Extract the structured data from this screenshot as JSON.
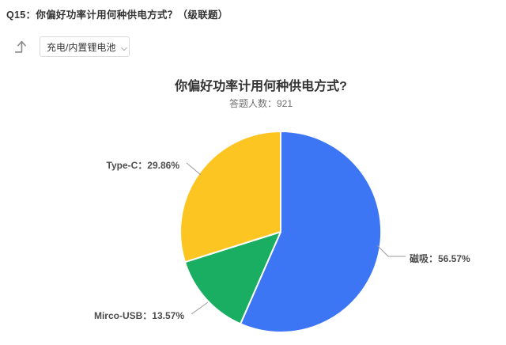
{
  "header": {
    "question_label": "Q15：你偏好功率计用何种供电方式？（级联题）"
  },
  "cascade": {
    "arrow_icon": "level-up-arrow",
    "dropdown_value": "充电/内置锂电池",
    "chevron_icon": "chevron-down"
  },
  "chart": {
    "title": "你偏好功率计用何种供电方式?",
    "respondents_label": "答题人数：921"
  },
  "chart_data": {
    "type": "pie",
    "title": "你偏好功率计用何种供电方式?",
    "respondents": 921,
    "start_angle_deg": -90,
    "direction": "clockwise",
    "slices": [
      {
        "label": "磁吸",
        "percent": 56.57,
        "color": "#3D76F5",
        "display": "磁吸：56.57%"
      },
      {
        "label": "Mirco-USB",
        "percent": 13.57,
        "color": "#1AAE63",
        "display": "Mirco-USB：13.57%"
      },
      {
        "label": "Type-C",
        "percent": 29.86,
        "color": "#FDC521",
        "display": "Type-C：29.86%"
      }
    ],
    "label_color": "#4d4d4d",
    "leader_line_color": "#999999",
    "legend": "off",
    "slice_border_color": "#ffffff"
  }
}
